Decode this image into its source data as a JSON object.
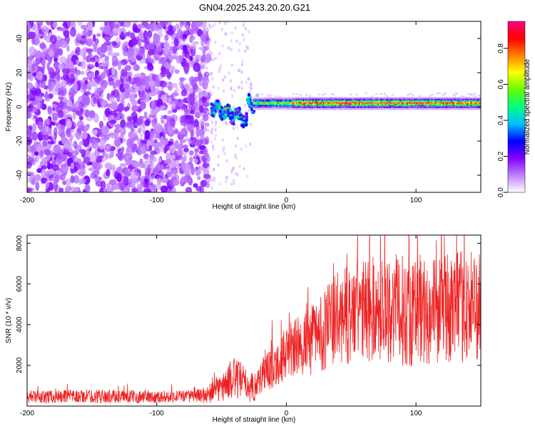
{
  "title": "GN04.2025.243.20.20.G21",
  "chart_data": [
    {
      "type": "heatmap",
      "name": "spectrogram",
      "title": "GN04.2025.243.20.20.G21",
      "xlabel": "Height of straight line (km)",
      "ylabel": "Frequency (Hz)",
      "xlim": [
        -200,
        150
      ],
      "ylim": [
        -50,
        50
      ],
      "x_ticks": [
        -200,
        -100,
        0,
        100
      ],
      "y_ticks": [
        -40,
        -20,
        0,
        20,
        40
      ],
      "description_regions": {
        "noise_region_x": [
          -200,
          -60
        ],
        "transition_region_x": [
          -60,
          -25
        ],
        "signal_line_frequency_hz": 2
      },
      "colorbar": {
        "label": "Normalized spectral amplitude",
        "range": [
          0.0,
          0.95
        ],
        "ticks": [
          0.0,
          0.2,
          0.4,
          0.6,
          0.8
        ],
        "tick_labels": [
          "0.0",
          "0.2",
          "0.4",
          "0.6",
          "0.8"
        ],
        "colors": [
          "#ffffff",
          "#c080ff",
          "#8000ff",
          "#0000ff",
          "#00c0ff",
          "#00ff80",
          "#60ff00",
          "#ffff00",
          "#ff8000",
          "#ff0000",
          "#ff0080"
        ]
      }
    },
    {
      "type": "line",
      "name": "snr",
      "xlabel": "Height of straight line (km)",
      "ylabel": "SNR (10 * v/v)",
      "xlim": [
        -200,
        150
      ],
      "ylim": [
        0,
        8400
      ],
      "x_ticks": [
        -200,
        -100,
        0,
        100
      ],
      "y_ticks": [
        2000,
        4000,
        6000,
        8000
      ],
      "series": [
        {
          "name": "SNR",
          "color": "#ee2222",
          "envelope_x": [
            -200,
            -150,
            -100,
            -70,
            -60,
            -50,
            -40,
            -35,
            -30,
            -25,
            -20,
            0,
            20,
            40,
            60,
            80,
            100,
            120,
            150
          ],
          "envelope_mean": [
            450,
            480,
            450,
            500,
            550,
            900,
            1400,
            1200,
            1000,
            900,
            1400,
            2600,
            3300,
            4300,
            4700,
            4800,
            4600,
            4800,
            4900
          ],
          "envelope_amplitude": [
            300,
            350,
            300,
            300,
            450,
            700,
            1000,
            1000,
            800,
            700,
            900,
            1300,
            1800,
            2300,
            2600,
            2700,
            2800,
            2700,
            2800
          ]
        }
      ]
    }
  ]
}
